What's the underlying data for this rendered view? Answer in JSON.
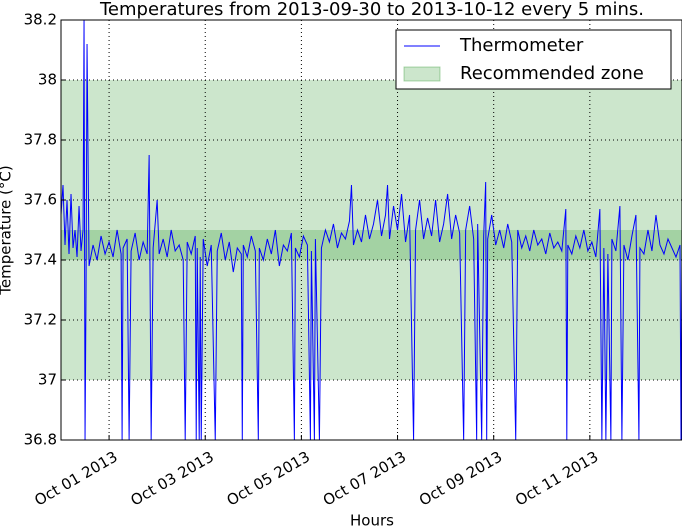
{
  "chart_data": {
    "type": "line",
    "title": "Temperatures from 2013-09-30 to 2013-10-12 every 5 mins.",
    "xlabel": "Hours",
    "ylabel": "Temperature (°C)",
    "xlim": [
      0,
      310
    ],
    "ylim": [
      36.8,
      38.2
    ],
    "xticks": [
      {
        "value": 24,
        "label": "Oct 01 2013"
      },
      {
        "value": 72,
        "label": "Oct 03 2013"
      },
      {
        "value": 120,
        "label": "Oct 05 2013"
      },
      {
        "value": 168,
        "label": "Oct 07 2013"
      },
      {
        "value": 216,
        "label": "Oct 09 2013"
      },
      {
        "value": 264,
        "label": "Oct 11 2013"
      }
    ],
    "yticks": [
      36.8,
      37.0,
      37.2,
      37.4,
      37.6,
      37.8,
      38.0,
      38.2
    ],
    "grid": true,
    "legend": "upper right",
    "bands": [
      {
        "name": "Recommended zone",
        "ymin": 37.0,
        "ymax": 38.0,
        "color": "#008000"
      },
      {
        "ymin": 37.4,
        "ymax": 37.5,
        "color": "#008000"
      }
    ],
    "series": [
      {
        "name": "Thermometer",
        "color": "#0000ff",
        "x": [
          0,
          1,
          2,
          3,
          4,
          5,
          6,
          7,
          8,
          9,
          10,
          11,
          11.5,
          12,
          12.5,
          13,
          14,
          16,
          18,
          20,
          22,
          24,
          26,
          28,
          30,
          30.5,
          31,
          33,
          34,
          35,
          37,
          39,
          41,
          43,
          44,
          44.5,
          45,
          46,
          48,
          49,
          51,
          53,
          55,
          57,
          59,
          61,
          62,
          63,
          65,
          67,
          67.5,
          68,
          69,
          69.5,
          70,
          71,
          73,
          75,
          77,
          78,
          80,
          82,
          84,
          86,
          88,
          90,
          90.5,
          91,
          93,
          95,
          97,
          98.5,
          99,
          101,
          103,
          105,
          107,
          109,
          111,
          113,
          115,
          116.5,
          117,
          119,
          121,
          123,
          124.5,
          125,
          126.5,
          127,
          129,
          130,
          132,
          134,
          136,
          138,
          140,
          142,
          144,
          145,
          146,
          148,
          150,
          152,
          154,
          156,
          158,
          160,
          162,
          163,
          164,
          166,
          168,
          170,
          172,
          174,
          176,
          177,
          179,
          181,
          183,
          185,
          187,
          189,
          191,
          193,
          195,
          197,
          199,
          201,
          202,
          204,
          206,
          207.5,
          208,
          210,
          211,
          212,
          212.5,
          213,
          215,
          217,
          219,
          221,
          223,
          225,
          227,
          228,
          230,
          232,
          234,
          236,
          238,
          240,
          242,
          244,
          246,
          248,
          250,
          252,
          252.5,
          253,
          255,
          257,
          259,
          261,
          263,
          265,
          267,
          269,
          270,
          271,
          272,
          273,
          274.5,
          275,
          277,
          279,
          280,
          281,
          283,
          285,
          287,
          288.5,
          289,
          291,
          293,
          295,
          297,
          299,
          301,
          303,
          305,
          307,
          309,
          309.5,
          310
        ],
        "values": [
          37.55,
          37.65,
          37.45,
          37.6,
          37.42,
          37.62,
          37.44,
          37.5,
          37.41,
          37.58,
          37.43,
          37.5,
          38.2,
          36.8,
          37.3,
          38.12,
          37.38,
          37.45,
          37.4,
          37.48,
          37.42,
          37.46,
          37.41,
          37.5,
          37.42,
          36.8,
          37.44,
          37.47,
          36.8,
          37.43,
          37.49,
          37.4,
          37.46,
          37.42,
          37.75,
          37.3,
          36.8,
          37.44,
          37.6,
          37.42,
          37.47,
          37.41,
          37.5,
          37.43,
          37.45,
          37.4,
          36.8,
          37.46,
          37.42,
          37.48,
          36.8,
          37.44,
          36.8,
          37.41,
          36.8,
          37.47,
          37.38,
          37.45,
          36.8,
          37.43,
          37.49,
          37.4,
          37.46,
          37.36,
          37.44,
          37.42,
          36.8,
          37.45,
          37.41,
          37.48,
          37.43,
          36.8,
          37.44,
          37.4,
          37.47,
          37.42,
          37.5,
          37.38,
          37.45,
          37.43,
          37.49,
          36.8,
          37.44,
          37.41,
          37.48,
          37.45,
          36.8,
          37.43,
          36.8,
          37.47,
          36.8,
          37.44,
          37.5,
          37.46,
          37.52,
          37.44,
          37.49,
          37.47,
          37.53,
          37.65,
          37.45,
          37.5,
          37.46,
          37.55,
          37.47,
          37.52,
          37.6,
          37.48,
          37.55,
          37.65,
          37.47,
          37.58,
          37.5,
          37.62,
          37.46,
          37.55,
          36.8,
          37.5,
          37.6,
          37.47,
          37.54,
          37.48,
          37.6,
          37.46,
          37.52,
          37.62,
          37.47,
          37.55,
          37.49,
          36.8,
          37.5,
          37.58,
          37.47,
          36.8,
          37.52,
          36.8,
          37.48,
          37.66,
          36.8,
          37.47,
          37.55,
          37.45,
          37.5,
          37.44,
          37.52,
          37.46,
          36.8,
          37.5,
          37.44,
          37.48,
          37.43,
          37.5,
          37.45,
          37.47,
          37.42,
          37.49,
          37.44,
          37.46,
          37.43,
          37.57,
          36.8,
          37.45,
          37.42,
          37.48,
          37.44,
          37.5,
          37.43,
          37.46,
          37.41,
          37.57,
          36.8,
          37.44,
          36.8,
          37.42,
          36.8,
          37.47,
          37.43,
          37.58,
          36.8,
          37.45,
          37.4,
          37.48,
          37.55,
          36.8,
          37.44,
          37.42,
          37.5,
          37.43,
          37.55,
          37.45,
          37.42,
          37.47,
          37.44,
          37.41,
          37.45,
          36.8,
          37.43
        ]
      }
    ]
  }
}
